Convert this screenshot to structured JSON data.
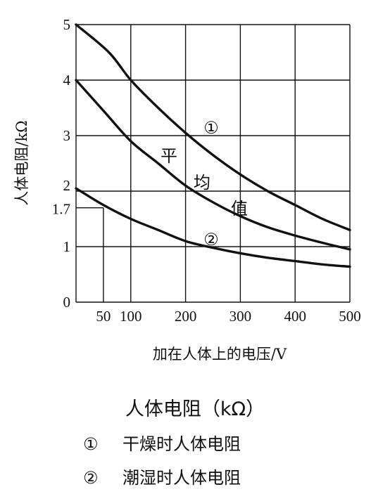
{
  "chart_data": {
    "type": "line",
    "ylabel": "人体电阻/kΩ",
    "xlabel": "加在人体上的电压/V",
    "xlim": [
      0,
      500
    ],
    "ylim": [
      0,
      5
    ],
    "x_ticks": [
      "50",
      "100",
      "200",
      "300",
      "400",
      "500"
    ],
    "x_tick_values": [
      50,
      100,
      200,
      300,
      400,
      500
    ],
    "y_ticks": [
      "0",
      "1",
      "1.7",
      "2",
      "3",
      "4",
      "5"
    ],
    "y_tick_values": [
      0,
      1,
      1.7,
      2,
      3,
      4,
      5
    ],
    "grid": true,
    "series": [
      {
        "name": "①",
        "x": [
          0,
          60,
          100,
          150,
          200,
          250,
          300,
          350,
          400,
          450,
          500
        ],
        "y": [
          5.0,
          4.5,
          4.0,
          3.5,
          3.05,
          2.65,
          2.3,
          2.0,
          1.75,
          1.5,
          1.3
        ]
      },
      {
        "name": "平均值",
        "x": [
          0,
          50,
          100,
          150,
          200,
          250,
          300,
          350,
          400,
          450,
          500
        ],
        "y": [
          4.0,
          3.45,
          2.9,
          2.5,
          2.1,
          1.8,
          1.55,
          1.35,
          1.2,
          1.07,
          0.95
        ]
      },
      {
        "name": "②",
        "x": [
          0,
          50,
          100,
          150,
          200,
          250,
          300,
          350,
          400,
          450,
          500
        ],
        "y": [
          2.05,
          1.75,
          1.5,
          1.3,
          1.1,
          0.98,
          0.88,
          0.8,
          0.74,
          0.68,
          0.64
        ]
      }
    ],
    "annotations": {
      "curve1_label": "①",
      "curve2_label": "②",
      "avg_chars": [
        "平",
        "均",
        "值"
      ]
    }
  },
  "caption": {
    "title": "人体电阻（kΩ）",
    "legend": [
      {
        "mark": "①",
        "text": "干燥时人体电阻"
      },
      {
        "mark": "②",
        "text": "潮湿时人体电阻"
      }
    ]
  }
}
